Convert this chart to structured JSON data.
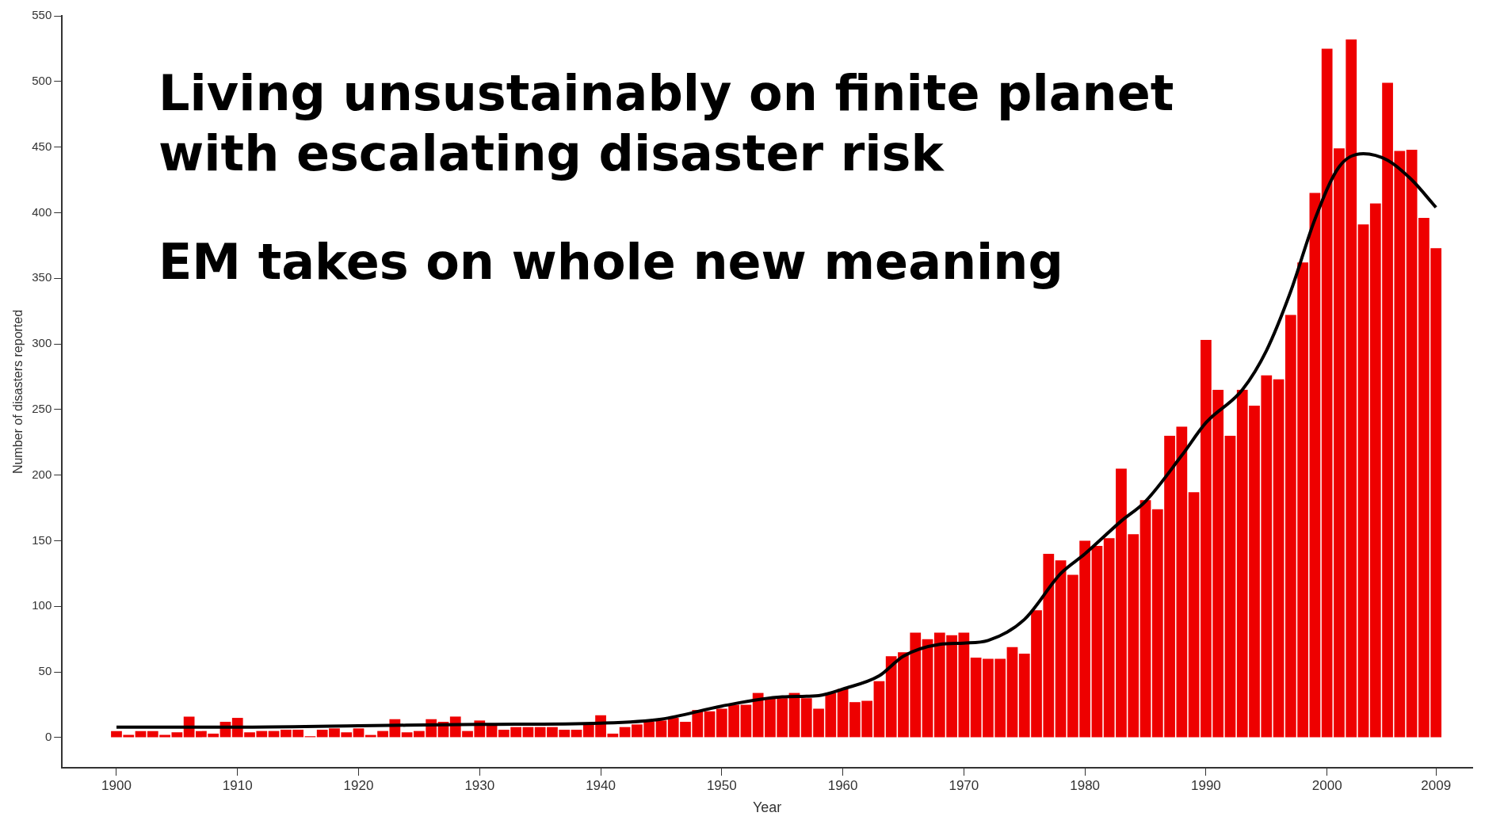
{
  "chart_data": {
    "type": "bar",
    "xlabel": "Year",
    "ylabel": "Number of disasters reported",
    "annotations": [
      "Living unsustainably on finite planet with escalating disaster risk",
      "EM takes on whole new meaning"
    ],
    "xlim": [
      1895.5,
      2012
    ],
    "xticks": [
      1900,
      1910,
      1920,
      1930,
      1940,
      1950,
      1960,
      1970,
      1980,
      1990,
      2000,
      2009
    ],
    "ylim": [
      -23,
      550
    ],
    "yticks": [
      0,
      50,
      100,
      150,
      200,
      250,
      300,
      350,
      400,
      450,
      500,
      550
    ],
    "grid": false,
    "legend": false,
    "series": [
      {
        "color": "#ee0000",
        "x": [
          1900,
          1901,
          1902,
          1903,
          1904,
          1905,
          1906,
          1907,
          1908,
          1909,
          1910,
          1911,
          1912,
          1913,
          1914,
          1915,
          1916,
          1917,
          1918,
          1919,
          1920,
          1921,
          1922,
          1923,
          1924,
          1925,
          1926,
          1927,
          1928,
          1929,
          1930,
          1931,
          1932,
          1933,
          1934,
          1935,
          1936,
          1937,
          1938,
          1939,
          1940,
          1941,
          1942,
          1943,
          1944,
          1945,
          1946,
          1947,
          1948,
          1949,
          1950,
          1951,
          1952,
          1953,
          1954,
          1955,
          1956,
          1957,
          1958,
          1959,
          1960,
          1961,
          1962,
          1963,
          1964,
          1965,
          1966,
          1967,
          1968,
          1969,
          1970,
          1971,
          1972,
          1973,
          1974,
          1975,
          1976,
          1977,
          1978,
          1979,
          1980,
          1981,
          1982,
          1983,
          1984,
          1985,
          1986,
          1987,
          1988,
          1989,
          1990,
          1991,
          1992,
          1993,
          1994,
          1995,
          1996,
          1997,
          1998,
          1999,
          2000,
          2001,
          2002,
          2003,
          2004,
          2005,
          2006,
          2007,
          2008,
          2009
        ],
        "values": [
          5,
          2,
          5,
          5,
          2,
          4,
          16,
          5,
          3,
          12,
          15,
          4,
          5,
          5,
          6,
          6,
          1,
          6,
          7,
          4,
          7,
          2,
          5,
          14,
          4,
          5,
          14,
          12,
          16,
          5,
          13,
          9,
          6,
          8,
          8,
          8,
          8,
          6,
          6,
          10,
          17,
          3,
          8,
          10,
          12,
          13,
          15,
          12,
          21,
          20,
          22,
          25,
          25,
          34,
          30,
          30,
          34,
          30,
          22,
          34,
          37,
          27,
          28,
          43,
          62,
          65,
          80,
          75,
          80,
          78,
          80,
          61,
          60,
          60,
          69,
          64,
          97,
          140,
          135,
          124,
          150,
          146,
          152,
          205,
          155,
          181,
          174,
          230,
          237,
          187,
          303,
          265,
          230,
          265,
          253,
          276,
          273,
          322,
          362,
          415,
          525,
          449,
          532,
          391,
          407,
          499,
          447,
          448,
          396,
          373
        ]
      },
      {
        "type": "line",
        "color": "#000000",
        "x": [
          1900,
          1910,
          1920,
          1930,
          1940,
          1945,
          1950,
          1955,
          1958,
          1960,
          1963,
          1965,
          1968,
          1970,
          1972,
          1975,
          1978,
          1980,
          1983,
          1985,
          1988,
          1990,
          1993,
          1995,
          1997,
          1999,
          2001,
          2003,
          2005,
          2007,
          2009
        ],
        "values": [
          8,
          8,
          9,
          10,
          11,
          14,
          24,
          31,
          32,
          37,
          47,
          62,
          71,
          72,
          74,
          90,
          125,
          140,
          165,
          180,
          215,
          240,
          265,
          295,
          340,
          395,
          435,
          445,
          440,
          425,
          404
        ]
      }
    ]
  }
}
